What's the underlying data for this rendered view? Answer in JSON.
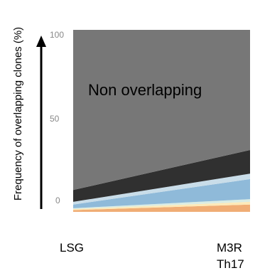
{
  "chart_data": {
    "type": "area",
    "stacked": true,
    "ylabel": "Frequency of overlapping clones (%)",
    "ylim": [
      0,
      100
    ],
    "yticks": [
      "0",
      "50",
      "100"
    ],
    "categories": [
      "LSG",
      "M3R Th17"
    ],
    "category_lines": [
      [
        "LSG"
      ],
      [
        "M3R",
        "Th17"
      ]
    ],
    "annotation": "Non overlapping",
    "series": [
      {
        "values": [
          1.0,
          4.0
        ],
        "color": "#f0ad75"
      },
      {
        "values": [
          0.5,
          1.5
        ],
        "color": "#fde9b8"
      },
      {
        "values": [
          0.5,
          1.5
        ],
        "color": "#d9ece4"
      },
      {
        "values": [
          2.0,
          11.0
        ],
        "color": "#8fbad9"
      },
      {
        "values": [
          1.5,
          3.0
        ],
        "color": "#c9dde9"
      },
      {
        "values": [
          6.5,
          13.0
        ],
        "color": "#303030"
      },
      {
        "values": [
          88.0,
          66.0
        ],
        "color": "#777777"
      }
    ]
  }
}
